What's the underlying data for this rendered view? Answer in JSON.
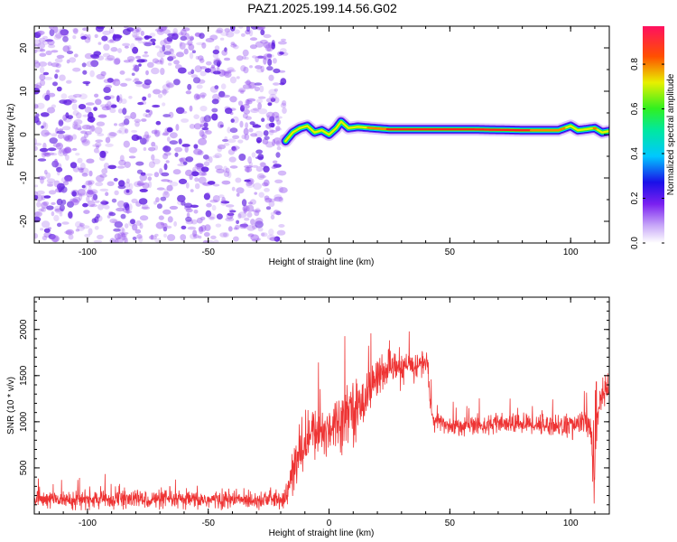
{
  "title": "PAZ1.2025.199.14.56.G02",
  "chart_data": [
    {
      "type": "heatmap",
      "xlabel": "Height of straight line (km)",
      "ylabel": "Frequency (Hz)",
      "xlim": [
        -122,
        116
      ],
      "ylim": [
        -25,
        25
      ],
      "xticks": [
        "-100",
        "-50",
        "0",
        "50",
        "100"
      ],
      "yticks": [
        "-20",
        "-10",
        "0",
        "10",
        "20"
      ],
      "noise_region_x": [
        -122,
        -18
      ],
      "signal_ridge": {
        "x": [
          -18,
          -15,
          -12,
          -9,
          -6,
          -3,
          0,
          3,
          5,
          8,
          12,
          18,
          25,
          40,
          60,
          80,
          95,
          100,
          103,
          106,
          110,
          113,
          116
        ],
        "freq": [
          -1.5,
          0.5,
          1.5,
          2.0,
          0.5,
          1.0,
          0.0,
          1.5,
          3.0,
          1.5,
          1.8,
          1.5,
          1.2,
          1.2,
          1.2,
          1.0,
          1.0,
          2.0,
          1.0,
          1.2,
          1.5,
          0.5,
          0.8
        ],
        "amplitude": [
          0.25,
          0.35,
          0.4,
          0.5,
          0.6,
          0.65,
          0.7,
          0.65,
          0.6,
          0.7,
          0.75,
          0.8,
          0.9,
          0.95,
          0.95,
          0.9,
          0.8,
          0.75,
          0.7,
          0.7,
          0.8,
          0.5,
          0.45
        ]
      },
      "colorbar": {
        "label": "Normalized spectral amplitude",
        "ticks": [
          "0.0",
          "0.2",
          "0.4",
          "0.6",
          "0.8"
        ],
        "range": [
          0,
          0.97
        ]
      }
    },
    {
      "type": "line",
      "xlabel": "Height of straight line (km)",
      "ylabel": "SNR (10 * v/v)",
      "xlim": [
        -122,
        116
      ],
      "ylim": [
        0,
        2350
      ],
      "xticks": [
        "-100",
        "-50",
        "0",
        "50",
        "100"
      ],
      "yticks": [
        "500",
        "1000",
        "1500",
        "2000"
      ],
      "series": [
        {
          "color": "#ee3333",
          "x": [
            -122,
            -100,
            -80,
            -60,
            -40,
            -22,
            -18,
            -15,
            -12,
            -9,
            -6,
            -3,
            0,
            3,
            6,
            9,
            12,
            15,
            18,
            21,
            24,
            27,
            30,
            33,
            36,
            39,
            41,
            42,
            43,
            46,
            50,
            60,
            70,
            80,
            90,
            100,
            105,
            108,
            109,
            110,
            111,
            112,
            114,
            116
          ],
          "mean": [
            160,
            155,
            160,
            150,
            155,
            160,
            165,
            450,
            650,
            800,
            900,
            850,
            950,
            1000,
            1050,
            1200,
            1100,
            1300,
            1400,
            1550,
            1500,
            1600,
            1550,
            1620,
            1600,
            1650,
            1600,
            1150,
            1000,
            1000,
            950,
            960,
            970,
            980,
            970,
            950,
            1000,
            950,
            600,
            350,
            1050,
            1250,
            1300,
            1380
          ],
          "spread": [
            130,
            130,
            130,
            130,
            130,
            130,
            150,
            380,
            350,
            350,
            350,
            400,
            400,
            400,
            400,
            350,
            450,
            350,
            300,
            250,
            250,
            220,
            220,
            200,
            200,
            200,
            200,
            160,
            150,
            140,
            140,
            140,
            140,
            140,
            160,
            170,
            180,
            250,
            350,
            1200,
            300,
            250,
            200,
            180
          ]
        }
      ]
    }
  ],
  "colors": {
    "noise_speckle": "#9a5af0",
    "noise_speckle_dark": "#6020e0",
    "line": "#ee3333"
  }
}
